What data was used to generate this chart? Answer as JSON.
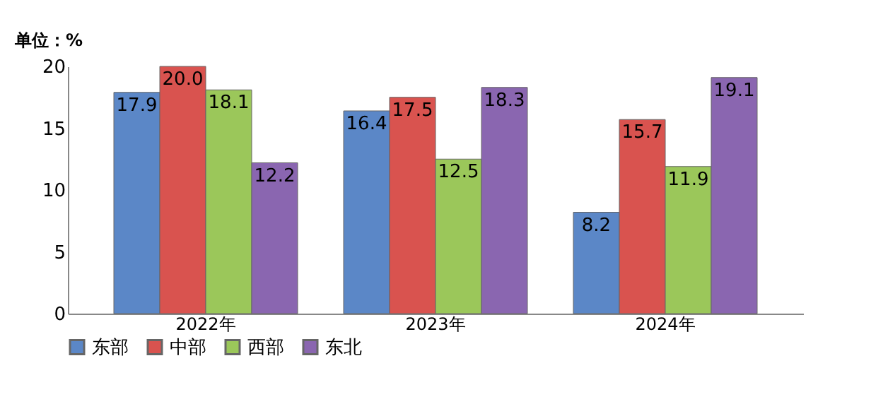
{
  "chart_data": {
    "type": "bar",
    "ylabel": "单位：%",
    "categories": [
      "2022年",
      "2023年",
      "2024年"
    ],
    "series": [
      {
        "name": "东部",
        "color": "#5b87c7",
        "values": [
          17.9,
          16.4,
          8.2
        ],
        "value_labels": [
          "17.9",
          "16.4",
          "8.2"
        ]
      },
      {
        "name": "中部",
        "color": "#d9534f",
        "values": [
          20.0,
          17.5,
          15.7
        ],
        "value_labels": [
          "20.0",
          "17.5",
          "15.7"
        ]
      },
      {
        "name": "西部",
        "color": "#9bc75a",
        "values": [
          18.1,
          12.5,
          11.9
        ],
        "value_labels": [
          "18.1",
          "12.5",
          "11.9"
        ]
      },
      {
        "name": "东北",
        "color": "#8a66b0",
        "values": [
          12.2,
          18.3,
          19.1
        ],
        "value_labels": [
          "12.2",
          "18.3",
          "19.1"
        ]
      }
    ],
    "ylim": [
      0,
      20
    ],
    "yticks": [
      0,
      5,
      10,
      15,
      20
    ],
    "grid": false,
    "legend": "bottom"
  }
}
